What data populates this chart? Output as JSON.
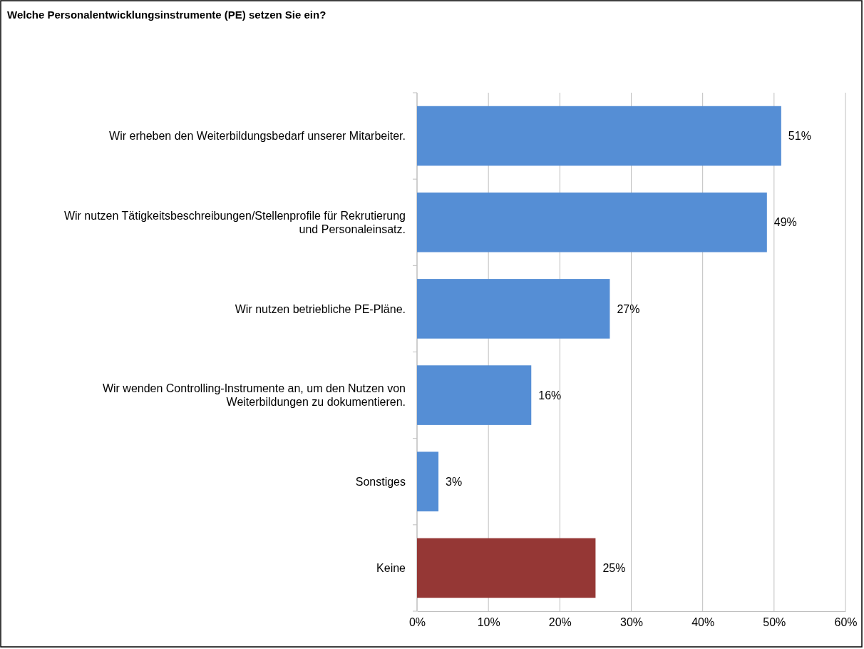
{
  "chart_data": {
    "type": "bar",
    "orientation": "horizontal",
    "title": "Welche Personalentwicklungsinstrumente (PE) setzen Sie ein?",
    "categories": [
      "Wir erheben den Weiterbildungsbedarf unserer Mitarbeiter.",
      "Wir nutzen Tätigkeitsbeschreibungen/Stellenprofile für Rekrutierung und Personaleinsatz.",
      "Wir nutzen betriebliche PE-Pläne.",
      "Wir wenden Controlling-Instrumente an, um den Nutzen von Weiterbildungen zu dokumentieren.",
      "Sonstiges",
      "Keine"
    ],
    "values": [
      51,
      49,
      27,
      16,
      3,
      25
    ],
    "colors": [
      "#558ed5",
      "#558ed5",
      "#558ed5",
      "#558ed5",
      "#558ed5",
      "#953735"
    ],
    "value_labels": [
      "51%",
      "49%",
      "27%",
      "16%",
      "3%",
      "25%"
    ],
    "xlim": [
      0,
      60
    ],
    "xticks": [
      {
        "value": 0,
        "label": "0%"
      },
      {
        "value": 10,
        "label": "10%"
      },
      {
        "value": 20,
        "label": "20%"
      },
      {
        "value": 30,
        "label": "30%"
      },
      {
        "value": 40,
        "label": "40%"
      },
      {
        "value": 50,
        "label": "50%"
      },
      {
        "value": 60,
        "label": "60%"
      }
    ],
    "grid": "x"
  }
}
